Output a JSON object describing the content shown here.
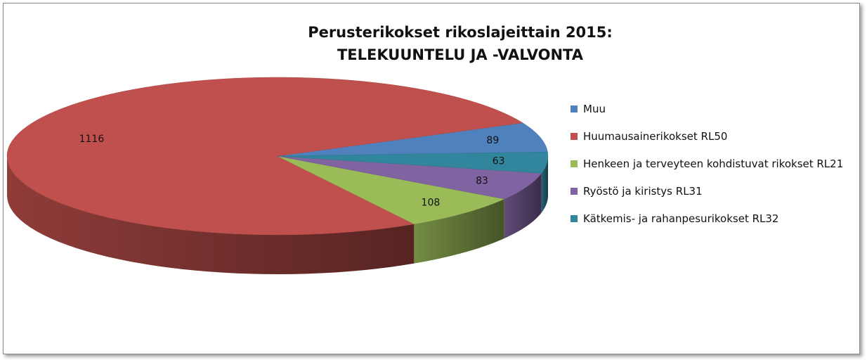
{
  "chart_data": {
    "type": "pie3d",
    "title": "Perusterikokset rikoslajeittain 2015: TELEKUUNTELU JA -VALVONTA",
    "series": [
      {
        "name": "Muu",
        "color": "#4f81bd",
        "values": [
          89
        ]
      },
      {
        "name": "Huumausainerikokset RL50",
        "color": "#c0504d",
        "values": [
          1116
        ]
      },
      {
        "name": "Henkeen ja terveyteen kohdistuvat rikokset RL21",
        "color": "#9bbb59",
        "values": [
          108
        ]
      },
      {
        "name": "Ryöstö ja kiristys RL31",
        "color": "#8064a2",
        "values": [
          83
        ]
      },
      {
        "name": "Kätkemis- ja rahanpesurikokset RL32",
        "color": "#31859c",
        "values": [
          63
        ]
      }
    ],
    "legend": "right"
  }
}
